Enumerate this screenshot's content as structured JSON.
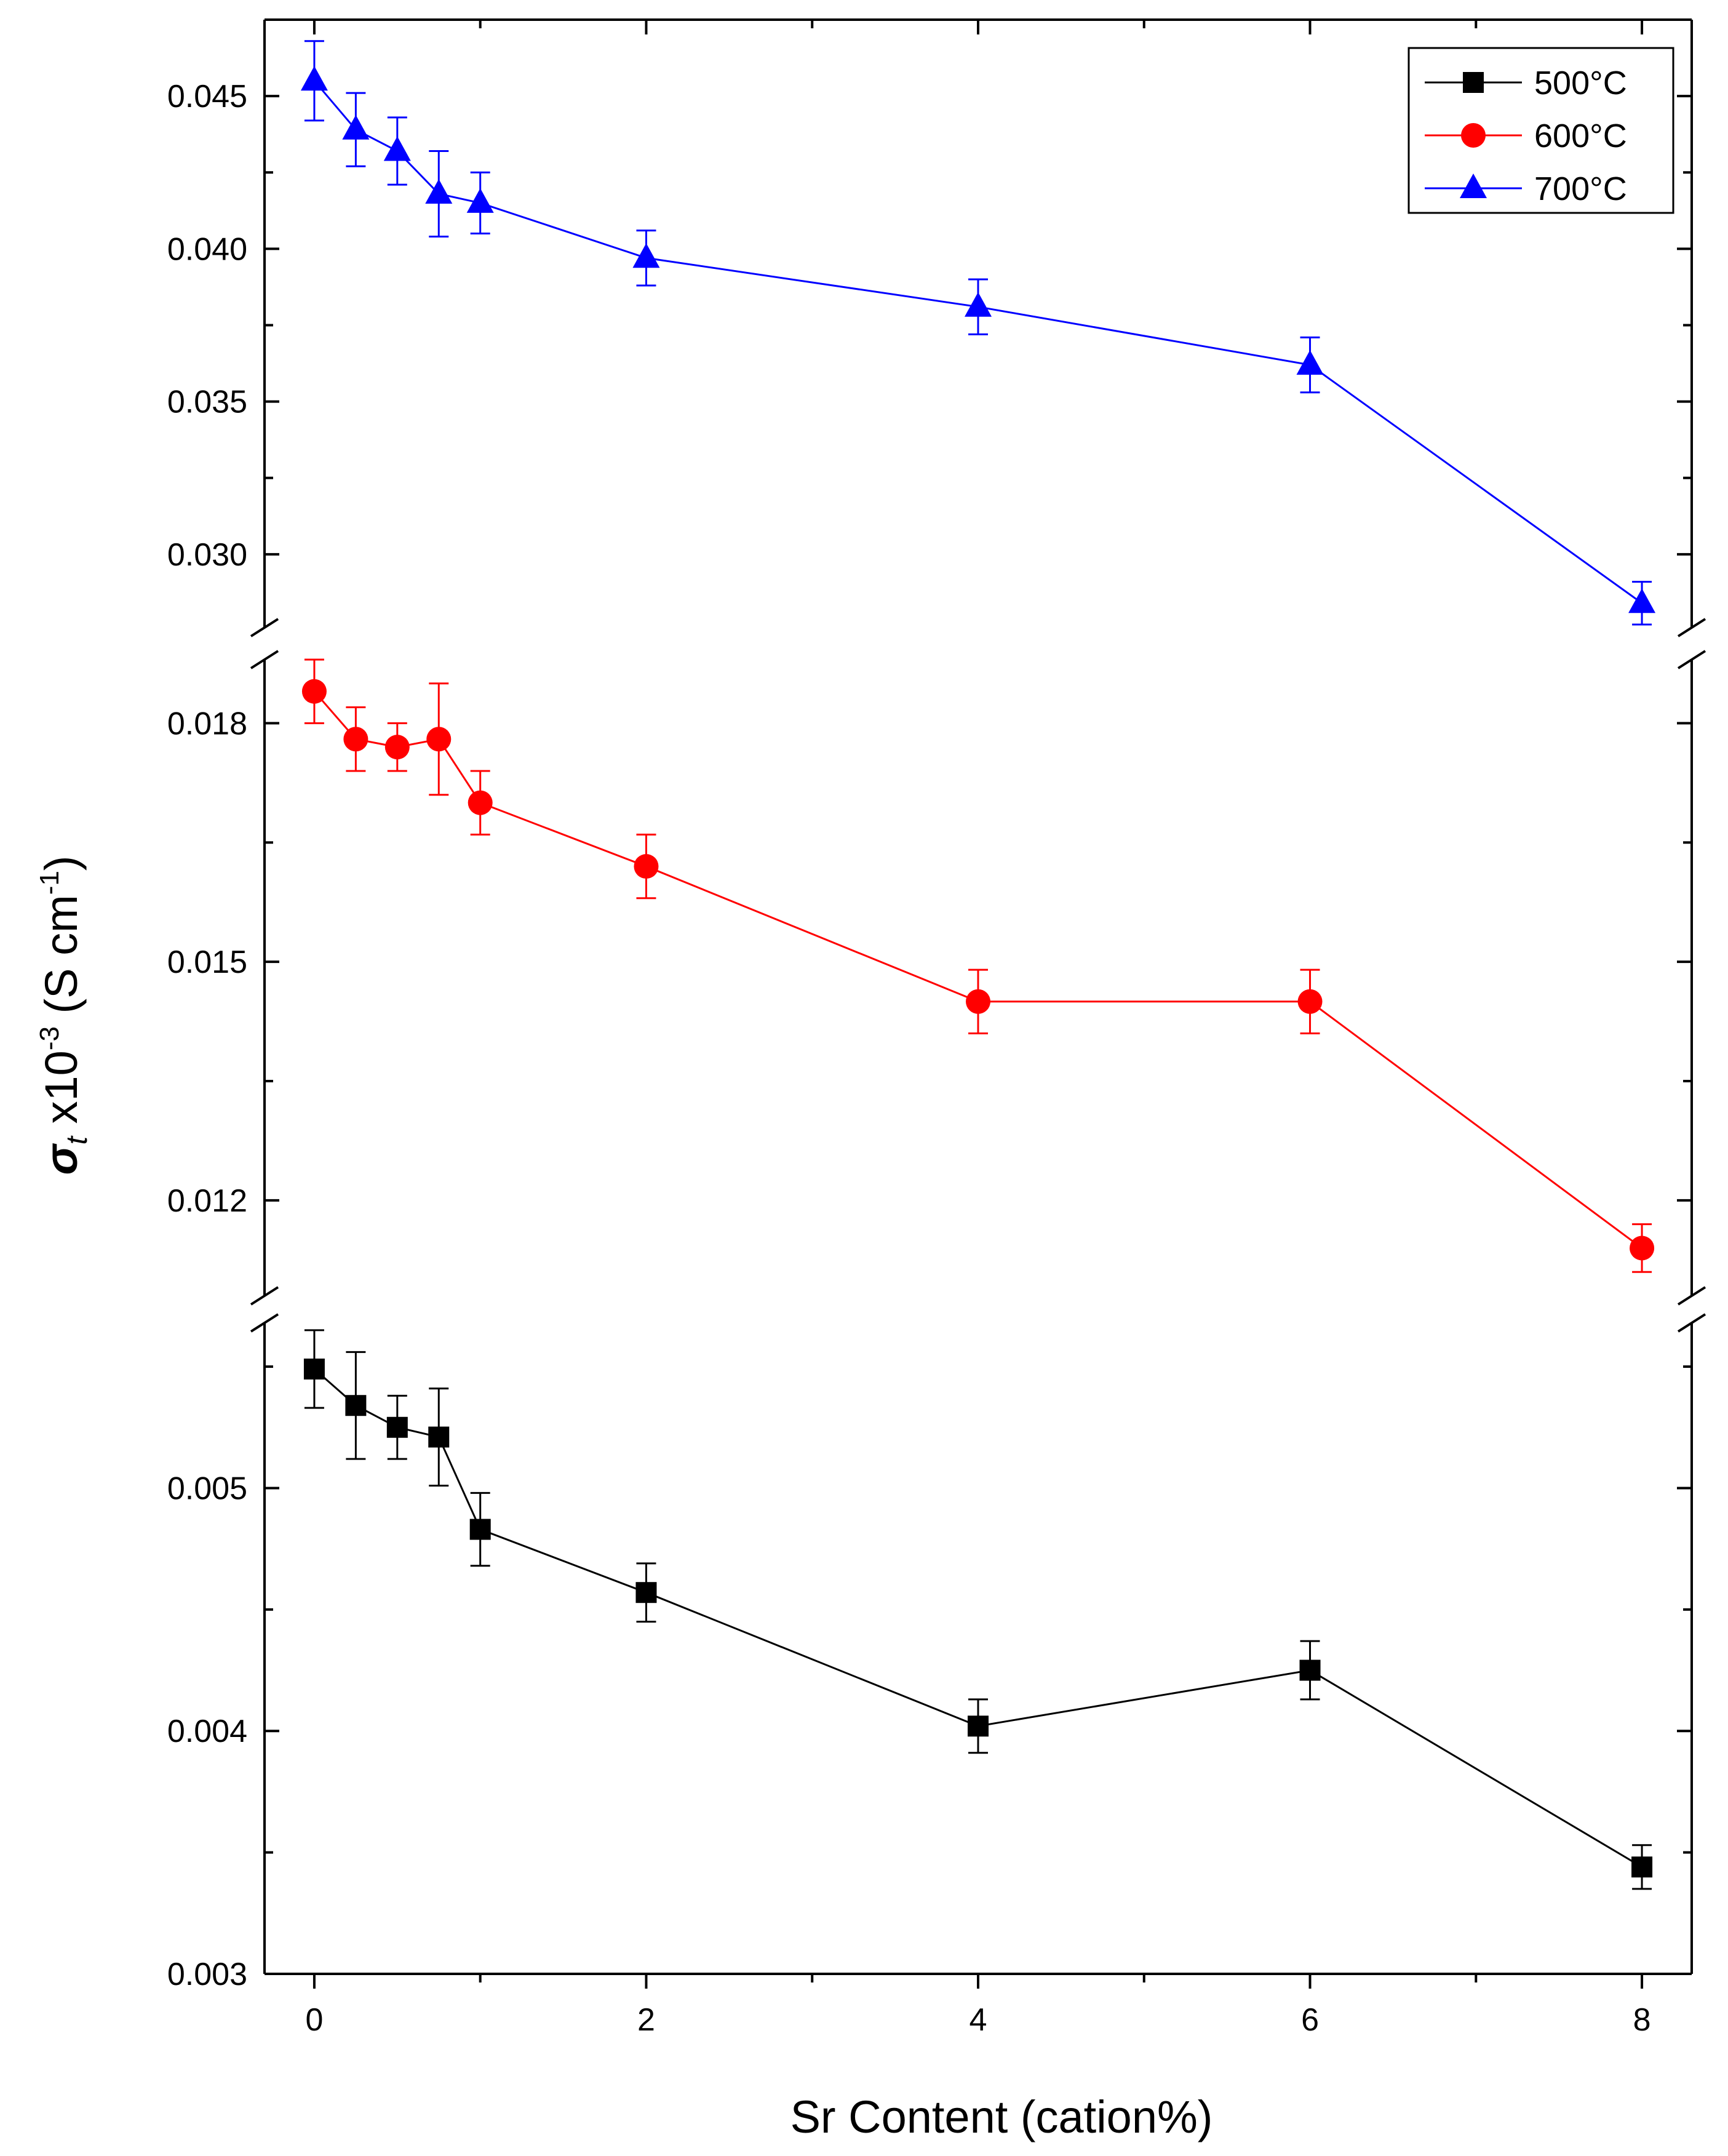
{
  "chart_data": {
    "type": "line",
    "xlabel": "Sr Content (cation%)",
    "ylabel": {
      "sigma": "σ",
      "sub": "t",
      "times": " x10",
      "exp1": "-3",
      "unit": " (S cm",
      "exp2": "-1",
      "close": ")"
    },
    "x_ticks": [
      0,
      2,
      4,
      6,
      8
    ],
    "xlim": [
      -0.3,
      8.3
    ],
    "legend_position": "top-right",
    "panels": [
      {
        "name": "700",
        "ylim": [
          0.0276,
          0.0475
        ],
        "ticks": [
          "0.030",
          "0.035",
          "0.040",
          "0.045"
        ]
      },
      {
        "name": "600",
        "ylim": [
          0.0108,
          0.0188
        ],
        "ticks": [
          "0.012",
          "0.015",
          "0.018"
        ]
      },
      {
        "name": "500",
        "ylim": [
          0.003,
          0.00568
        ],
        "ticks": [
          "0.003",
          "0.004",
          "0.005"
        ]
      }
    ],
    "series": [
      {
        "name": "500°C",
        "color": "#000000",
        "marker": "square",
        "panel": 2,
        "x": [
          0,
          0.25,
          0.5,
          0.75,
          1,
          2,
          4,
          6,
          8
        ],
        "y": [
          0.00549,
          0.00534,
          0.00525,
          0.00521,
          0.00483,
          0.00457,
          0.00402,
          0.00425,
          0.00344
        ],
        "err": [
          0.00016,
          0.00022,
          0.00013,
          0.0002,
          0.00015,
          0.00012,
          0.00011,
          0.00012,
          9e-05
        ]
      },
      {
        "name": "600°C",
        "color": "#ff0000",
        "marker": "circle",
        "panel": 1,
        "x": [
          0,
          0.25,
          0.5,
          0.75,
          1,
          2,
          4,
          6,
          8
        ],
        "y": [
          0.0184,
          0.0178,
          0.0177,
          0.0178,
          0.017,
          0.0162,
          0.0145,
          0.0145,
          0.0114
        ],
        "err": [
          0.0004,
          0.0004,
          0.0003,
          0.0007,
          0.0004,
          0.0004,
          0.0004,
          0.0004,
          0.0003
        ]
      },
      {
        "name": "700°C",
        "color": "#0000ff",
        "marker": "triangle",
        "panel": 0,
        "x": [
          0,
          0.25,
          0.5,
          0.75,
          1,
          2,
          4,
          6,
          8
        ],
        "y": [
          0.0455,
          0.0439,
          0.0432,
          0.0418,
          0.0415,
          0.0397,
          0.0381,
          0.0362,
          0.0284
        ],
        "err": [
          0.0013,
          0.0012,
          0.0011,
          0.0014,
          0.001,
          0.0009,
          0.0009,
          0.0009,
          0.0007
        ]
      }
    ]
  }
}
